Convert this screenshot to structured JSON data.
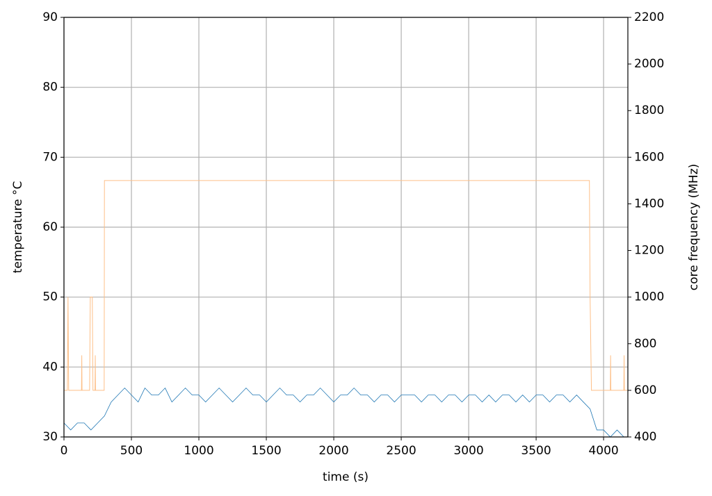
{
  "chart_data": {
    "type": "line",
    "xlabel": "time (s)",
    "ylabel": "temperature °C",
    "y2label": "core frequency (MHz)",
    "xlim": [
      0,
      4180
    ],
    "xticks": [
      0,
      500,
      1000,
      1500,
      2000,
      2500,
      3000,
      3500,
      4000
    ],
    "ylim": [
      30,
      90
    ],
    "yticks": [
      30,
      40,
      50,
      60,
      70,
      80,
      90
    ],
    "y2lim": [
      400,
      2200
    ],
    "y2ticks": [
      400,
      600,
      800,
      1000,
      1200,
      1400,
      1600,
      1800,
      2000,
      2200
    ],
    "grid": true,
    "series": [
      {
        "color": "#1f77b4",
        "x": [
          0,
          50,
          100,
          150,
          200,
          250,
          300,
          350,
          400,
          450,
          500,
          550,
          600,
          650,
          700,
          750,
          800,
          850,
          900,
          950,
          1000,
          1050,
          1100,
          1150,
          1200,
          1250,
          1300,
          1350,
          1400,
          1450,
          1500,
          1550,
          1600,
          1650,
          1700,
          1750,
          1800,
          1850,
          1900,
          1950,
          2000,
          2050,
          2100,
          2150,
          2200,
          2250,
          2300,
          2350,
          2400,
          2450,
          2500,
          2550,
          2600,
          2650,
          2700,
          2750,
          2800,
          2850,
          2900,
          2950,
          3000,
          3050,
          3100,
          3150,
          3200,
          3250,
          3300,
          3350,
          3400,
          3450,
          3500,
          3550,
          3600,
          3650,
          3700,
          3750,
          3800,
          3850,
          3900,
          3950,
          4000,
          4050,
          4100,
          4150
        ],
        "values": [
          32,
          31,
          32,
          32,
          31,
          32,
          33,
          35,
          36,
          37,
          36,
          35,
          37,
          36,
          36,
          37,
          35,
          36,
          37,
          36,
          36,
          35,
          36,
          37,
          36,
          35,
          36,
          37,
          36,
          36,
          35,
          36,
          37,
          36,
          36,
          35,
          36,
          36,
          37,
          36,
          35,
          36,
          36,
          37,
          36,
          36,
          35,
          36,
          36,
          35,
          36,
          36,
          36,
          35,
          36,
          36,
          35,
          36,
          36,
          35,
          36,
          36,
          35,
          36,
          35,
          36,
          36,
          35,
          36,
          35,
          36,
          36,
          35,
          36,
          36,
          35,
          36,
          35,
          34,
          31,
          31,
          30,
          31,
          30
        ]
      },
      {
        "color": "#fdbf87",
        "axis": "y2",
        "x": [
          0,
          25,
          30,
          35,
          130,
          132,
          134,
          190,
          195,
          210,
          215,
          230,
          232,
          234,
          298,
          300,
          3895,
          3900,
          3910,
          4050,
          4052,
          4054,
          4150,
          4152,
          4154,
          4180
        ],
        "values": [
          600,
          600,
          1000,
          600,
          600,
          750,
          600,
          600,
          1000,
          1000,
          600,
          600,
          750,
          600,
          600,
          1500,
          1500,
          1000,
          600,
          600,
          750,
          600,
          600,
          750,
          600,
          600
        ]
      }
    ]
  }
}
